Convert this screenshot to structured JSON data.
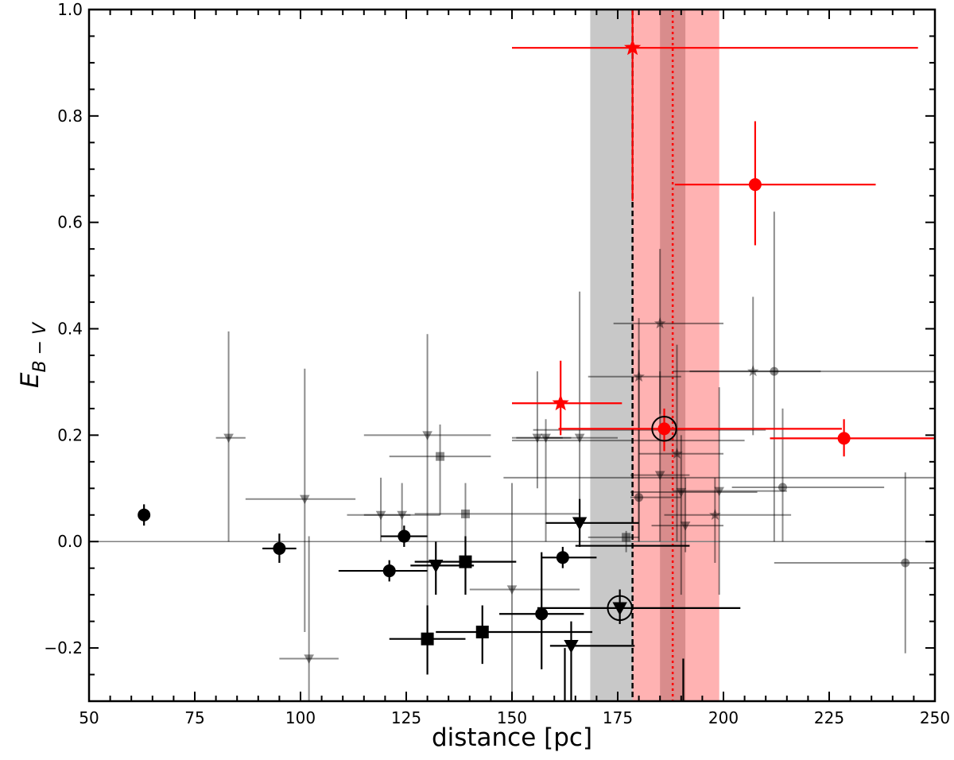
{
  "chart_data": {
    "type": "scatter",
    "title": "",
    "xlabel": "distance [pc]",
    "ylabel_main": "E",
    "ylabel_sub": "B − V",
    "xlim": [
      50,
      250
    ],
    "ylim": [
      -0.3,
      1.0
    ],
    "x_ticks": [
      50,
      75,
      100,
      125,
      150,
      175,
      200,
      225,
      250
    ],
    "x_tick_labels": [
      "50",
      "75",
      "100",
      "125",
      "150",
      "175",
      "200",
      "225",
      "250"
    ],
    "y_ticks": [
      -0.2,
      0.0,
      0.2,
      0.4,
      0.6,
      0.8,
      1.0
    ],
    "y_tick_labels": [
      "−0.2",
      "0.0",
      "0.2",
      "0.4",
      "0.6",
      "0.8",
      "1.0"
    ],
    "grid": false,
    "legend": "none",
    "colors": {
      "red": "#ff0000",
      "black": "#000000",
      "gray": "#808080",
      "gray_band": "#c8c8c8",
      "red_band_light": "#ffb2b2",
      "red_band_dark": "#d98c8c"
    },
    "reference_lines": [
      {
        "kind": "horizontal",
        "y": 0.0,
        "style": "solid",
        "color": "gray"
      },
      {
        "kind": "vertical",
        "x": 178.5,
        "style": "dashed",
        "color": "black"
      },
      {
        "kind": "vertical",
        "x": 188.0,
        "style": "dotted",
        "color": "red"
      }
    ],
    "bands": [
      {
        "name": "gray",
        "x0": 168.5,
        "x1": 188.5,
        "color": "gray_band"
      },
      {
        "name": "red-outer",
        "x0": 178.5,
        "x1": 199.0,
        "color": "red_band_light"
      },
      {
        "name": "red-inner",
        "x0": 185.0,
        "x1": 191.0,
        "color": "red_band_dark"
      }
    ],
    "series": [
      {
        "group": "gray",
        "points": [
          {
            "m": "v",
            "x": 83,
            "y": 0.195,
            "xe": [
              80,
              87
            ],
            "ye": [
              0.0,
              0.395
            ]
          },
          {
            "m": "v",
            "x": 101,
            "y": 0.08,
            "xe": [
              87,
              113
            ],
            "ye": [
              -0.17,
              0.325
            ]
          },
          {
            "m": "v",
            "x": 102,
            "y": -0.22,
            "xe": [
              95,
              109
            ],
            "ye": [
              -0.3,
              0.01
            ]
          },
          {
            "m": "v",
            "x": 119,
            "y": 0.05,
            "xe": [
              111,
              126
            ],
            "ye": [
              0.0,
              0.12
            ]
          },
          {
            "m": "v",
            "x": 124,
            "y": 0.05,
            "xe": [
              115,
              133
            ],
            "ye": [
              0.0,
              0.11
            ]
          },
          {
            "m": "v",
            "x": 130,
            "y": 0.2,
            "xe": [
              115,
              145
            ],
            "ye": [
              -0.15,
              0.39
            ]
          },
          {
            "m": "s",
            "x": 133,
            "y": 0.16,
            "xe": [
              121,
              145
            ],
            "ye": [
              0.05,
              0.22
            ]
          },
          {
            "m": "s",
            "x": 139,
            "y": 0.052,
            "xe": [
              127,
              166
            ],
            "ye": [
              0.0,
              0.11
            ]
          },
          {
            "m": "v",
            "x": 150,
            "y": -0.09,
            "xe": [
              140,
              166
            ],
            "ye": [
              -0.3,
              0.11
            ]
          },
          {
            "m": "v",
            "x": 156,
            "y": 0.195,
            "xe": [
              151,
              162
            ],
            "ye": [
              0.1,
              0.32
            ]
          },
          {
            "m": "v",
            "x": 158,
            "y": 0.195,
            "xe": [
              150,
              164
            ],
            "ye": [
              0.0,
              0.23
            ]
          },
          {
            "m": "v",
            "x": 166,
            "y": 0.195,
            "xe": [
              158,
              175
            ],
            "ye": [
              0.0,
              0.47
            ]
          },
          {
            "m": "s",
            "x": 177,
            "y": 0.008,
            "xe": [
              168,
              180
            ],
            "ye": [
              -0.02,
              0.02
            ]
          },
          {
            "m": "*",
            "x": 180,
            "y": 0.31,
            "xe": [
              168,
              190
            ],
            "ye": [
              0.0,
              0.42
            ]
          },
          {
            "m": "o",
            "x": 180,
            "y": 0.083,
            "xe": [
              178,
              190
            ],
            "ye": [
              0.0,
              0.36
            ]
          },
          {
            "m": "*",
            "x": 185,
            "y": 0.41,
            "xe": [
              174,
              200
            ],
            "ye": [
              0.24,
              0.55
            ]
          },
          {
            "m": "v",
            "x": 185,
            "y": 0.125,
            "xe": [
              178,
              192
            ],
            "ye": [
              0.0,
              0.32
            ]
          },
          {
            "m": "*",
            "x": 189,
            "y": 0.165,
            "xe": [
              180,
              200
            ],
            "ye": [
              0.0,
              0.37
            ]
          },
          {
            "m": "v",
            "x": 190,
            "y": 0.093,
            "xe": [
              178,
              208
            ],
            "ye": [
              -0.1,
              0.2
            ]
          },
          {
            "m": "v",
            "x": 191,
            "y": 0.03,
            "xe": [
              183,
              200
            ],
            "ye": [
              -0.02,
              0.12
            ]
          },
          {
            "m": "v",
            "x": 199,
            "y": 0.095,
            "xe": [
              188,
              215
            ],
            "ye": [
              -0.1,
              0.29
            ]
          },
          {
            "m": "*",
            "x": 198,
            "y": 0.05,
            "xe": [
              186,
              216
            ],
            "ye": [
              -0.04,
              0.12
            ]
          },
          {
            "m": "*",
            "x": 207,
            "y": 0.32,
            "xe": [
              192,
              223
            ],
            "ye": [
              0.2,
              0.46
            ]
          },
          {
            "m": "o",
            "x": 212,
            "y": 0.32,
            "xe": [
              188,
              250
            ],
            "ye": [
              0.0,
              0.62
            ]
          },
          {
            "m": "o",
            "x": 214,
            "y": 0.102,
            "xe": [
              202,
              238
            ],
            "ye": [
              0.0,
              0.25
            ]
          },
          {
            "m": "o",
            "x": 243,
            "y": -0.04,
            "xe": [
              212,
              250
            ],
            "ye": [
              -0.21,
              0.13
            ]
          }
        ],
        "extra_xbars": [
          {
            "y": 0.12,
            "xe": [
              148,
              250
            ]
          },
          {
            "y": 0.19,
            "xe": [
              150,
              205
            ]
          },
          {
            "y": 0.21,
            "xe": [
              155,
              210
            ]
          }
        ]
      },
      {
        "group": "black",
        "points": [
          {
            "m": "o",
            "x": 63,
            "y": 0.05,
            "xe": [
              63,
              63
            ],
            "ye": [
              0.03,
              0.07
            ]
          },
          {
            "m": "o",
            "x": 95,
            "y": -0.013,
            "xe": [
              91,
              99
            ],
            "ye": [
              -0.04,
              0.015
            ]
          },
          {
            "m": "o",
            "x": 121,
            "y": -0.055,
            "xe": [
              109,
              130
            ],
            "ye": [
              -0.075,
              -0.035
            ]
          },
          {
            "m": "o",
            "x": 124.5,
            "y": 0.01,
            "xe": [
              119,
              130
            ],
            "ye": [
              -0.01,
              0.03
            ]
          },
          {
            "m": "v",
            "x": 132,
            "y": -0.045,
            "xe": [
              126,
              141
            ],
            "ye": [
              -0.1,
              0.0
            ]
          },
          {
            "m": "s",
            "x": 139,
            "y": -0.038,
            "xe": [
              127,
              151
            ],
            "ye": [
              -0.1,
              0.01
            ]
          },
          {
            "m": "s",
            "x": 130,
            "y": -0.183,
            "xe": [
              121,
              139
            ],
            "ye": [
              -0.25,
              -0.12
            ]
          },
          {
            "m": "s",
            "x": 143,
            "y": -0.17,
            "xe": [
              132,
              169
            ],
            "ye": [
              -0.23,
              -0.12
            ]
          },
          {
            "m": "o",
            "x": 157,
            "y": -0.136,
            "xe": [
              147,
              167
            ],
            "ye": [
              -0.24,
              -0.02
            ]
          },
          {
            "m": "o",
            "x": 162,
            "y": -0.03,
            "xe": [
              157,
              170
            ],
            "ye": [
              -0.05,
              -0.01
            ]
          },
          {
            "m": "v",
            "x": 166,
            "y": 0.035,
            "xe": [
              158,
              180
            ],
            "ye": [
              -0.01,
              0.08
            ]
          },
          {
            "m": "v",
            "x": 164,
            "y": -0.196,
            "xe": [
              159,
              179
            ],
            "ye": [
              -0.3,
              -0.15
            ]
          },
          {
            "m": "v",
            "x": 175.5,
            "y": -0.125,
            "xe": [
              156,
              204
            ],
            "ye": [
              -0.155,
              -0.09
            ],
            "ring": true
          }
        ],
        "extra_xbars": [
          {
            "y": -0.008,
            "xe": [
              165,
              192
            ]
          }
        ],
        "extra_ybars": [
          {
            "x": 162.5,
            "ye": [
              -0.3,
              -0.2
            ]
          },
          {
            "x": 190.5,
            "ye": [
              -0.3,
              -0.22
            ]
          }
        ]
      },
      {
        "group": "red",
        "points": [
          {
            "m": "*",
            "x": 178.5,
            "y": 0.928,
            "xe": [
              150,
              246
            ],
            "ye": [
              0.64,
              1.0
            ]
          },
          {
            "m": "o",
            "x": 207.5,
            "y": 0.671,
            "xe": [
              188.5,
              236
            ],
            "ye": [
              0.557,
              0.79
            ]
          },
          {
            "m": "*",
            "x": 161.5,
            "y": 0.26,
            "xe": [
              150,
              176
            ],
            "ye": [
              0.2,
              0.34
            ]
          },
          {
            "m": "o",
            "x": 186,
            "y": 0.212,
            "xe": [
              161,
              228
            ],
            "ye": [
              0.17,
              0.25
            ],
            "ring": true
          },
          {
            "m": "o",
            "x": 228.5,
            "y": 0.194,
            "xe": [
              211,
              250
            ],
            "ye": [
              0.16,
              0.23
            ]
          }
        ]
      }
    ]
  }
}
